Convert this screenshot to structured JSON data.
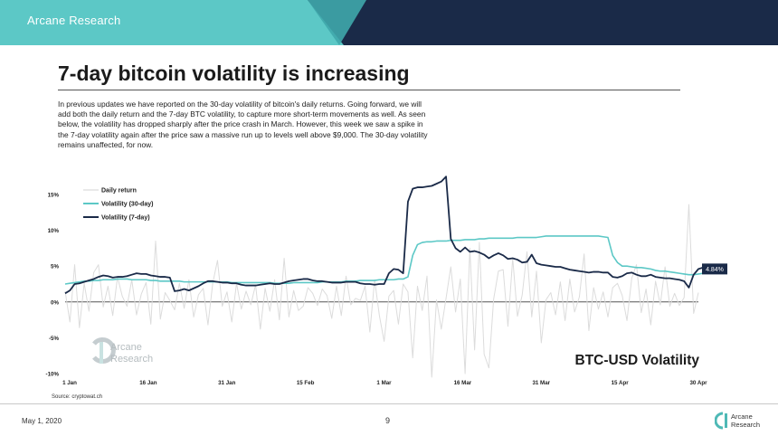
{
  "header": {
    "brand": "Arcane Research"
  },
  "slide": {
    "title": "7-day bitcoin volatility is increasing",
    "body": "In previous updates we have reported on the 30-day volatility of bitcoin's daily returns. Going forward, we will add both the daily return and the 7-day BTC volatility, to capture more short-term movements as well. As seen below, the volatility has dropped sharply after the price crash in March. However, this week we saw a spike in the 7-day volatility again after the price saw a massive run up to levels well above $9,000. The 30-day volatility remains unaffected, for now.",
    "source": "Source: cryptowat.ch"
  },
  "footer": {
    "date": "May 1, 2020",
    "page": "9",
    "logo_line1": "Arcane",
    "logo_line2": "Research"
  },
  "watermark": {
    "line1": "Arcane",
    "line2": "Research"
  },
  "colors": {
    "teal": "#5cc8c6",
    "navy": "#1a2a48",
    "grey": "#dcdcdc",
    "volume_teal": "#5fd8d3"
  },
  "chart_data": {
    "type": "line",
    "title": "BTC-USD Volatility",
    "xlabel": "",
    "ylabel": "",
    "x_ticks": [
      "1 Jan",
      "16 Jan",
      "31 Jan",
      "15 Feb",
      "1 Mar",
      "16 Mar",
      "31 Mar",
      "15 Apr",
      "30 Apr"
    ],
    "y_ticks": [
      "15%",
      "10%",
      "5%",
      "0%",
      "-5%",
      "-10%"
    ],
    "ylim": [
      -10,
      15
    ],
    "grid": false,
    "legend_position": "top-left",
    "end_label": "4.84%",
    "series": [
      {
        "name": "Daily return",
        "color": "#dcdcdc",
        "values": [
          1.5,
          -2.8,
          5.2,
          -3.6,
          2.6,
          -1.3,
          4.1,
          5.2,
          -0.7,
          2.2,
          -1.9,
          3.5,
          0.8,
          -0.6,
          3.1,
          -1.8,
          1.1,
          2.7,
          -3.1,
          8.5,
          -2.4,
          1.3,
          0.2,
          -1.1,
          2.6,
          -0.9,
          3.1,
          -2.1,
          1.0,
          1.9,
          -3.2,
          2.6,
          5.8,
          -0.6,
          1.4,
          -2.8,
          2.6,
          -1.0,
          1.5,
          -0.4,
          2.4,
          -3.8,
          1.9,
          -1.3,
          3.1,
          -2.5,
          6.1,
          -2.1,
          1.6,
          -1.2,
          -0.6,
          2.0,
          1.2,
          -0.5,
          1.8,
          0.9,
          -2.3,
          2.2,
          -1.9,
          3.6,
          -0.4,
          0.5,
          0.2,
          2.2,
          -4.2,
          3.1,
          -1.9,
          -5.5,
          0.8,
          1.6,
          -3.1,
          2.5,
          1.4,
          -7.8,
          2.2,
          -1.2,
          3.6,
          -10.5,
          0.3,
          -3.8,
          0.5,
          4.9,
          -1.4,
          3.2,
          -10.0,
          7.5,
          -6.7,
          8.3,
          -7.3,
          -9.2,
          0.4,
          4.3,
          4.5,
          -3.4,
          6.1,
          -2.0,
          1.0,
          7.0,
          -2.1,
          4.3,
          -5.7,
          0.3,
          1.3,
          -1.8,
          2.8,
          -2.6,
          3.2,
          -1.4,
          0.7,
          6.7,
          -4.0,
          2.0,
          -1.0,
          1.4,
          -2.1,
          2.0,
          2.6,
          0.9,
          -2.6,
          3.3,
          5.2,
          -1.5,
          1.8,
          -3.2,
          2.9,
          -0.4,
          4.9,
          -0.6,
          1.2,
          -0.5,
          0.6,
          13.6,
          -1.6,
          1.3
        ]
      },
      {
        "name": "Volatility (30-day)",
        "color": "#5cc8c6",
        "values": [
          2.5,
          2.6,
          2.7,
          2.8,
          2.9,
          2.9,
          3.0,
          3.0,
          3.1,
          3.1,
          3.1,
          3.2,
          3.2,
          3.2,
          3.1,
          3.1,
          3.1,
          3.1,
          3.0,
          3.0,
          2.9,
          2.9,
          2.9,
          2.9,
          2.9,
          2.8,
          2.8,
          2.8,
          2.8,
          2.8,
          2.8,
          2.8,
          2.8,
          2.8,
          2.8,
          2.7,
          2.7,
          2.7,
          2.7,
          2.7,
          2.7,
          2.7,
          2.7,
          2.7,
          2.6,
          2.6,
          2.6,
          2.6,
          2.7,
          2.7,
          2.7,
          2.7,
          2.7,
          2.7,
          2.8,
          2.8,
          2.8,
          2.8,
          2.8,
          2.9,
          2.9,
          2.9,
          3.0,
          3.0,
          3.0,
          3.0,
          3.1,
          3.1,
          3.1,
          3.1,
          3.2,
          3.2,
          3.5,
          6.5,
          8.0,
          8.3,
          8.4,
          8.4,
          8.5,
          8.5,
          8.5,
          8.6,
          8.6,
          8.6,
          8.7,
          8.7,
          8.7,
          8.8,
          8.8,
          8.9,
          8.9,
          8.9,
          8.9,
          8.9,
          8.9,
          9.0,
          9.0,
          9.0,
          9.0,
          9.0,
          9.1,
          9.2,
          9.2,
          9.2,
          9.2,
          9.2,
          9.2,
          9.2,
          9.2,
          9.2,
          9.2,
          9.2,
          9.2,
          9.1,
          9.0,
          6.5,
          5.5,
          5.0,
          5.0,
          4.9,
          4.8,
          4.8,
          4.7,
          4.6,
          4.4,
          4.3,
          4.3,
          4.2,
          4.1,
          4.0,
          3.9,
          3.8,
          3.8,
          3.9,
          4.0
        ]
      },
      {
        "name": "Volatility (7-day)",
        "color": "#1a2a48",
        "values": [
          1.2,
          1.6,
          2.5,
          2.6,
          2.8,
          3.0,
          3.2,
          3.5,
          3.7,
          3.6,
          3.4,
          3.5,
          3.5,
          3.6,
          3.8,
          4.0,
          3.9,
          3.9,
          3.7,
          3.6,
          3.5,
          3.5,
          3.4,
          1.5,
          1.6,
          1.8,
          1.6,
          1.9,
          2.2,
          2.6,
          2.9,
          2.9,
          2.8,
          2.7,
          2.7,
          2.6,
          2.6,
          2.4,
          2.3,
          2.3,
          2.3,
          2.4,
          2.5,
          2.6,
          2.5,
          2.5,
          2.7,
          2.9,
          3.0,
          3.1,
          3.2,
          3.2,
          3.0,
          2.9,
          2.9,
          2.8,
          2.7,
          2.7,
          2.7,
          2.8,
          2.8,
          2.8,
          2.6,
          2.5,
          2.5,
          2.4,
          2.5,
          2.5,
          4.0,
          4.6,
          4.5,
          4.0,
          14.0,
          15.8,
          16.0,
          16.0,
          16.1,
          16.2,
          16.5,
          16.8,
          17.5,
          8.8,
          7.5,
          7.0,
          7.6,
          7.0,
          7.1,
          6.9,
          6.6,
          6.1,
          6.5,
          6.8,
          6.5,
          6.0,
          6.1,
          5.9,
          5.5,
          5.6,
          6.6,
          5.4,
          5.2,
          5.1,
          5.0,
          4.9,
          4.9,
          4.7,
          4.5,
          4.4,
          4.3,
          4.2,
          4.1,
          4.2,
          4.2,
          4.1,
          4.1,
          3.5,
          3.4,
          3.6,
          4.0,
          4.1,
          3.8,
          3.6,
          3.6,
          3.8,
          3.5,
          3.4,
          3.3,
          3.3,
          3.2,
          3.1,
          2.9,
          2.0,
          3.8,
          4.6,
          4.8
        ]
      }
    ]
  }
}
